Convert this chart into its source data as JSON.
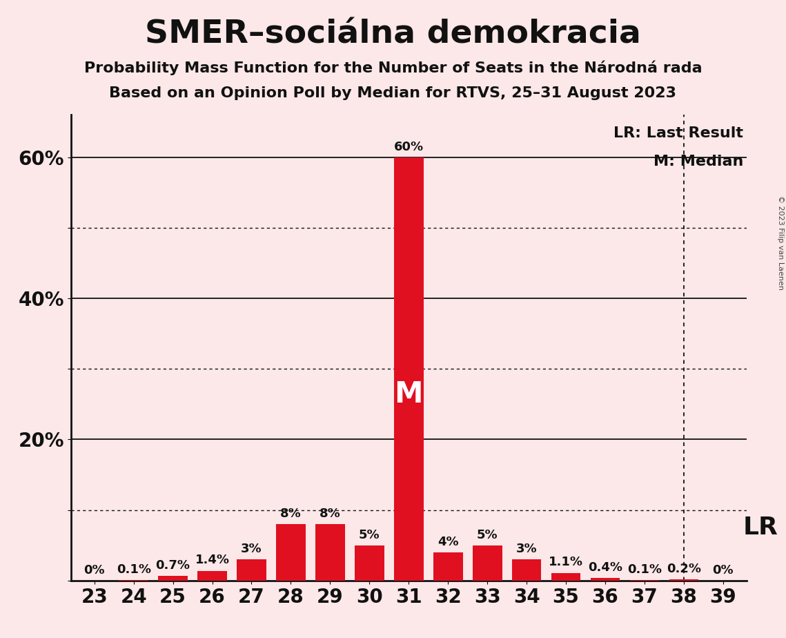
{
  "title": "SMER–sociálna demokracia",
  "subtitle1": "Probability Mass Function for the Number of Seats in the Národná rada",
  "subtitle2": "Based on an Opinion Poll by Median for RTVS, 25–31 August 2023",
  "copyright": "© 2023 Filip van Laenen",
  "categories": [
    23,
    24,
    25,
    26,
    27,
    28,
    29,
    30,
    31,
    32,
    33,
    34,
    35,
    36,
    37,
    38,
    39
  ],
  "values": [
    0.0,
    0.1,
    0.7,
    1.4,
    3.0,
    8.0,
    8.0,
    5.0,
    60.0,
    4.0,
    5.0,
    3.0,
    1.1,
    0.4,
    0.1,
    0.2,
    0.0
  ],
  "labels": [
    "0%",
    "0.1%",
    "0.7%",
    "1.4%",
    "3%",
    "8%",
    "8%",
    "5%",
    "60%",
    "4%",
    "5%",
    "3%",
    "1.1%",
    "0.4%",
    "0.1%",
    "0.2%",
    "0%"
  ],
  "bar_color": "#e01020",
  "median_seat": 31,
  "lr_seat": 38,
  "lr_label": "LR",
  "lr_legend": "LR: Last Result",
  "m_legend": "M: Median",
  "background_color": "#fce8e8",
  "yticks_labeled": [
    20,
    40,
    60
  ],
  "ytick_labeled_labels": [
    "20%",
    "40%",
    "60%"
  ],
  "yticks_dotted": [
    10,
    30,
    50
  ],
  "yticks_solid": [
    20,
    40,
    60
  ],
  "ylim": [
    0,
    66
  ],
  "grid_color": "#111111",
  "axis_color": "#111111",
  "title_fontsize": 34,
  "subtitle_fontsize": 16,
  "tick_fontsize": 20,
  "label_fontsize": 13,
  "legend_fontsize": 16,
  "lr_fontsize": 26,
  "m_inside_fontsize": 30
}
